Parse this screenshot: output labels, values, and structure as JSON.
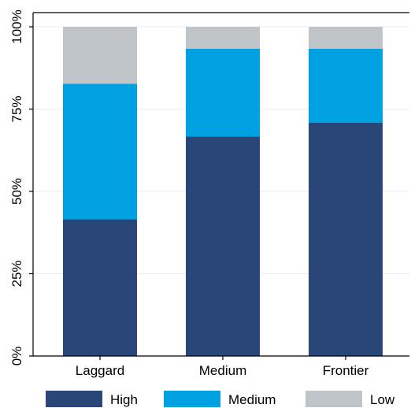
{
  "chart_data": {
    "type": "bar",
    "stacked": true,
    "categories": [
      "Laggard",
      "Medium",
      "Frontier"
    ],
    "series": [
      {
        "name": "High",
        "color": "#2a4679",
        "values": [
          41.5,
          66.7,
          70.9
        ]
      },
      {
        "name": "Medium",
        "color": "#00a1e0",
        "values": [
          41.2,
          26.6,
          22.4
        ]
      },
      {
        "name": "Low",
        "color": "#bfc4c8",
        "values": [
          17.3,
          6.7,
          6.7
        ]
      }
    ],
    "ylim": [
      0,
      100
    ],
    "yticks": [
      {
        "value": 0,
        "label": "0%"
      },
      {
        "value": 25,
        "label": "25%"
      },
      {
        "value": 50,
        "label": "50%"
      },
      {
        "value": 75,
        "label": "75%"
      },
      {
        "value": 100,
        "label": "100%"
      }
    ],
    "title": "",
    "xlabel": "",
    "ylabel": "",
    "grid": true,
    "legend_position": "bottom"
  }
}
